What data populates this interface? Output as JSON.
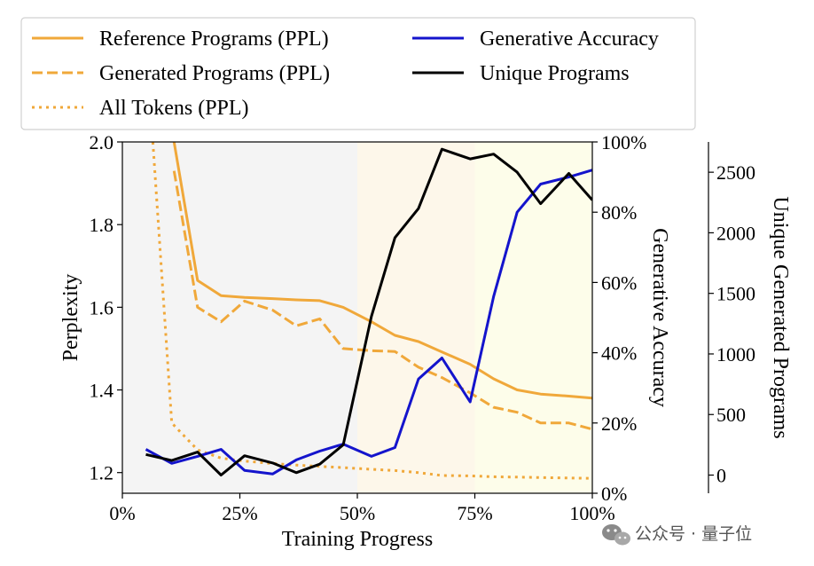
{
  "chart_data": {
    "type": "line",
    "xlabel": "Training Progress",
    "ylabel_left": "Perplexity",
    "ylabel_right1": "Generative Accuracy",
    "ylabel_right2": "Unique Generated Programs",
    "xlim": [
      0,
      100
    ],
    "ylim_left": [
      1.15,
      2.0
    ],
    "ylim_right1": [
      0,
      100
    ],
    "ylim_right2": [
      -150,
      2750
    ],
    "x_ticks": [
      0,
      25,
      50,
      75,
      100
    ],
    "x_tick_labels": [
      "0%",
      "25%",
      "50%",
      "75%",
      "100%"
    ],
    "y_left_ticks": [
      1.2,
      1.4,
      1.6,
      1.8,
      2.0
    ],
    "y_left_tick_labels": [
      "1.2",
      "1.4",
      "1.6",
      "1.8",
      "2.0"
    ],
    "y_right1_ticks": [
      0,
      20,
      40,
      60,
      80,
      100
    ],
    "y_right1_tick_labels": [
      "0%",
      "20%",
      "40%",
      "60%",
      "80%",
      "100%"
    ],
    "y_right2_ticks": [
      0,
      500,
      1000,
      1500,
      2000,
      2500
    ],
    "y_right2_tick_labels": [
      "0",
      "500",
      "1000",
      "1500",
      "2000",
      "2500"
    ],
    "background_regions": [
      {
        "from": 0,
        "to": 50,
        "color": "#f4f4f4"
      },
      {
        "from": 50,
        "to": 75,
        "color": "#fdf7ea"
      },
      {
        "from": 75,
        "to": 100,
        "color": "#fdfdea"
      }
    ],
    "series": [
      {
        "name": "Reference Programs (PPL)",
        "axis": "left",
        "color": "#f0a83a",
        "style": "solid",
        "x": [
          11,
          16,
          21,
          26,
          32,
          37,
          42,
          47,
          53,
          58,
          63,
          68,
          74,
          79,
          84,
          89,
          95,
          100
        ],
        "y": [
          2.0,
          1.665,
          1.628,
          1.624,
          1.621,
          1.618,
          1.616,
          1.6,
          1.565,
          1.532,
          1.517,
          1.492,
          1.462,
          1.427,
          1.4,
          1.39,
          1.385,
          1.38
        ]
      },
      {
        "name": "Generated Programs (PPL)",
        "axis": "left",
        "color": "#f0a83a",
        "style": "dashed",
        "x": [
          11,
          16,
          21,
          26,
          32,
          37,
          42,
          47,
          53,
          58,
          63,
          68,
          74,
          79,
          84,
          89,
          95,
          100
        ],
        "y": [
          1.93,
          1.6,
          1.565,
          1.615,
          1.593,
          1.555,
          1.572,
          1.5,
          1.495,
          1.493,
          1.455,
          1.43,
          1.393,
          1.358,
          1.346,
          1.32,
          1.32,
          1.305
        ]
      },
      {
        "name": "All Tokens (PPL)",
        "axis": "left",
        "color": "#f0a83a",
        "style": "dotted",
        "x": [
          6.5,
          10.5,
          16,
          21,
          26,
          32,
          37,
          42,
          47,
          53,
          58,
          63,
          68,
          74,
          79,
          84,
          89,
          95,
          100
        ],
        "y": [
          2.0,
          1.32,
          1.255,
          1.235,
          1.228,
          1.222,
          1.218,
          1.215,
          1.212,
          1.208,
          1.205,
          1.2,
          1.193,
          1.192,
          1.19,
          1.189,
          1.188,
          1.187,
          1.186
        ]
      },
      {
        "name": "Generative Accuracy",
        "axis": "right1",
        "color": "#1414cc",
        "style": "solid",
        "x": [
          5,
          10.5,
          16,
          21,
          26,
          32,
          37,
          42,
          47,
          53,
          58,
          63,
          68,
          74,
          79,
          84,
          89,
          95,
          100
        ],
        "y": [
          12.5,
          8.5,
          10.5,
          12.5,
          6.5,
          5.5,
          9.5,
          12,
          14,
          10.5,
          13,
          32.5,
          38.5,
          26,
          56,
          80,
          88,
          90,
          92
        ]
      },
      {
        "name": "Unique Programs",
        "axis": "right2",
        "color": "#000000",
        "style": "solid",
        "x": [
          5,
          10.5,
          16,
          21,
          26,
          32,
          37,
          42,
          47,
          53,
          58,
          63,
          68,
          74,
          79,
          84,
          89,
          95,
          100
        ],
        "y": [
          170,
          120,
          190,
          0,
          160,
          100,
          20,
          90,
          250,
          1310,
          1960,
          2200,
          2690,
          2610,
          2650,
          2500,
          2240,
          2490,
          2270
        ]
      }
    ],
    "legend": {
      "location": "top",
      "columns": [
        [
          "Reference Programs (PPL)",
          "Generated Programs (PPL)",
          "All Tokens (PPL)"
        ],
        [
          "Generative Accuracy",
          "Unique Programs"
        ]
      ]
    }
  },
  "watermark": {
    "text": "公众号 · 量子位"
  }
}
